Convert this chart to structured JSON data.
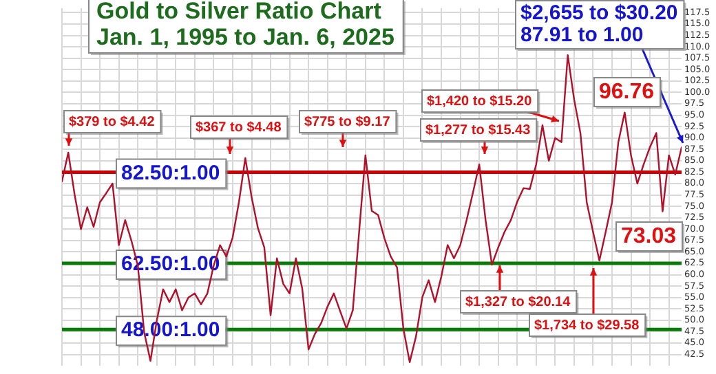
{
  "chart_data": {
    "type": "line",
    "title": "Gold to Silver Ratio Chart",
    "subtitle": "Jan. 1, 1995 to Jan. 6, 2025",
    "categories": [
      null,
      null,
      null,
      null,
      null,
      null,
      null,
      null,
      null,
      null,
      null,
      null,
      null,
      null,
      null,
      null,
      null,
      null,
      null,
      null,
      null,
      null,
      null,
      null,
      null,
      null,
      null,
      null,
      null,
      null,
      null,
      null,
      null,
      null,
      null,
      null,
      null,
      null,
      null,
      null,
      null,
      null,
      null,
      null,
      null,
      null,
      null,
      null,
      null,
      null,
      null,
      null,
      null,
      null,
      null,
      null,
      null,
      null,
      null,
      null,
      null,
      null,
      null,
      null,
      null,
      null,
      null,
      null,
      null,
      null,
      null,
      null,
      null,
      null,
      null,
      null,
      null,
      null,
      null,
      null,
      null,
      null,
      null,
      null,
      null,
      null,
      null,
      null,
      null,
      null,
      null,
      null,
      null,
      null,
      null,
      null,
      null,
      null,
      null
    ],
    "series": [
      {
        "color": "#b0102a",
        "values": [
          80.5,
          86.8,
          77.6,
          70,
          74.8,
          70.5,
          75.9,
          77.9,
          80,
          66.5,
          72,
          67.4,
          62,
          47.4,
          41.1,
          50,
          56.8,
          54,
          56.8,
          52.2,
          55,
          55.9,
          53.5,
          55.9,
          62,
          66.5,
          64,
          68.2,
          76,
          85.6,
          77,
          70.2,
          66,
          51.1,
          63.6,
          58,
          55.9,
          63.6,
          57,
          43.6,
          47,
          49.4,
          53,
          55.9,
          52,
          48.2,
          52.2,
          69.4,
          86.2,
          74,
          73.1,
          68,
          64,
          61.6,
          48.2,
          40.8,
          46.5,
          55.1,
          58.8,
          54,
          59.6,
          66.5,
          63.6,
          66.5,
          72,
          78,
          84.2,
          72,
          62.2,
          66,
          69.4,
          72,
          76,
          79,
          78.8,
          84.2,
          92.8,
          85,
          90,
          89.1,
          108.2,
          98.5,
          91.1,
          75.9,
          69.4,
          63.1,
          69.4,
          75.9,
          89.1,
          95.6,
          86.2,
          80,
          84.2,
          88,
          91.1,
          73.9,
          86.2,
          82,
          87.91
        ]
      }
    ],
    "ylim": [
      40,
      118.5
    ],
    "yticks": [
      42.5,
      {
        "value": 45,
        "label": "45.0"
      },
      47.5,
      {
        "value": 50,
        "label": "50.0"
      },
      52.5,
      {
        "value": 55,
        "label": "55.0"
      },
      57.5,
      {
        "value": 60,
        "label": "60.0"
      },
      62.5,
      {
        "value": 65,
        "label": "65.0"
      },
      67.5,
      {
        "value": 70,
        "label": "70.0"
      },
      72.5,
      {
        "value": 75,
        "label": "75.0"
      },
      77.5,
      {
        "value": 80,
        "label": "80.0"
      },
      82.5,
      {
        "value": 85,
        "label": "85.0"
      },
      87.5,
      {
        "value": 90,
        "label": "90.0"
      },
      92.5,
      {
        "value": 95,
        "label": "95.0"
      },
      97.5,
      {
        "value": 100,
        "label": "100.0"
      },
      102.5,
      {
        "value": 105,
        "label": "105.0"
      },
      107.5,
      {
        "value": 110,
        "label": "110.0"
      },
      112.5,
      {
        "value": 115,
        "label": "115.0"
      },
      117.5
    ],
    "grid": true,
    "legend": false,
    "tick_labels": "y",
    "marker": "none",
    "line_style": "solid",
    "ref_lines": [
      {
        "axis": "y",
        "value": 82.5,
        "label": "82.50:1.00",
        "color": "#cc0000"
      },
      {
        "axis": "y",
        "value": 62.5,
        "label": "62.50:1.00",
        "color": "#0a7a0a"
      },
      {
        "axis": "y",
        "value": 48,
        "label": "48.00:1.00",
        "color": "#0a7a0a"
      }
    ],
    "annotations": [
      "$379 to $4.42",
      "$367 to $4.48",
      "$775 to $9.17",
      "$1,277 to $15.43",
      "$1,420 to $15.20",
      "$2,655 to $30.20\n87.91 to 1.00",
      "96.76",
      "73.03",
      "$1,327 to $20.14",
      "$1,734 to $29.58"
    ]
  }
}
